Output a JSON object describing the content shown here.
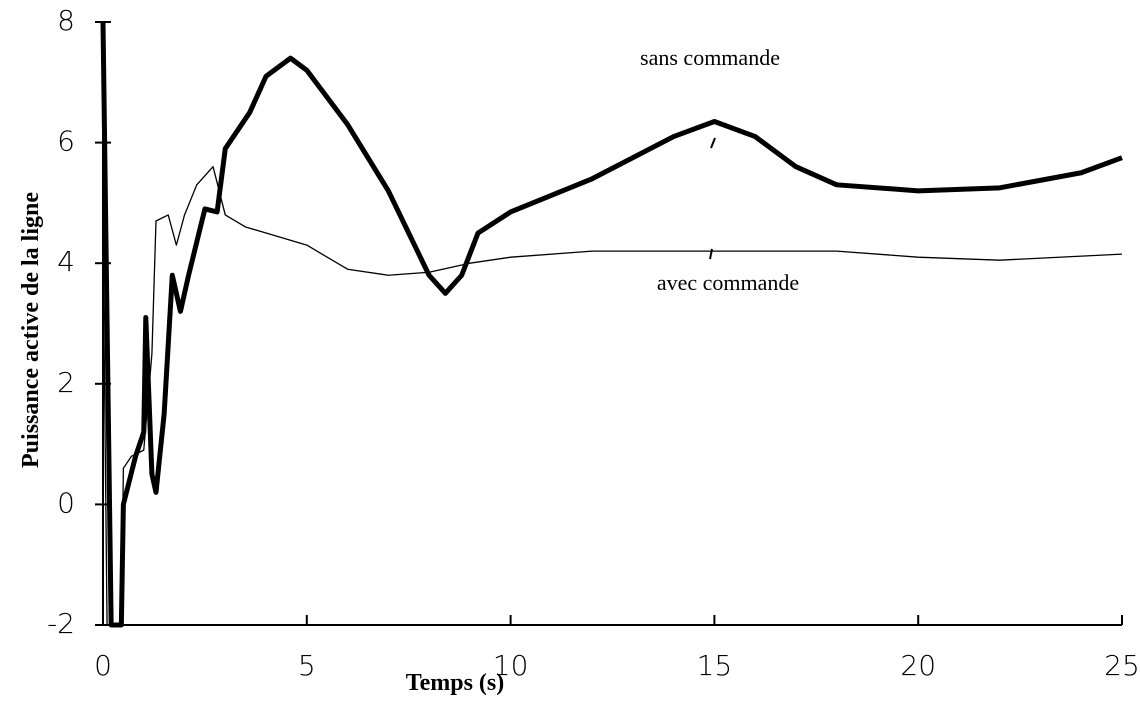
{
  "chart_data": {
    "type": "line",
    "xlabel": "Temps (s)",
    "ylabel": "Puissance active de la ligne",
    "xlim": [
      0,
      25
    ],
    "xticks": [
      0,
      5,
      10,
      15,
      20,
      25
    ],
    "ylim": [
      -2,
      8
    ],
    "yticks": [
      -2,
      0,
      2,
      4,
      6,
      8
    ],
    "annotations": [
      "sans commande",
      "avec commande"
    ],
    "series": [
      {
        "name": "sans commande",
        "color": "#000000",
        "x": [
          0,
          0.2,
          0.45,
          0.5,
          0.8,
          1.0,
          1.05,
          1.2,
          1.3,
          1.5,
          1.7,
          1.9,
          2.1,
          2.5,
          2.8,
          3.0,
          3.3,
          3.6,
          4.0,
          4.6,
          5,
          6,
          7,
          8,
          8.4,
          8.8,
          9.2,
          10,
          12,
          14,
          15,
          16,
          17,
          18,
          20,
          22,
          24,
          25
        ],
        "values": [
          8,
          -2,
          -2,
          0,
          0.8,
          1.2,
          3.1,
          0.5,
          0.2,
          1.5,
          3.8,
          3.2,
          3.8,
          4.9,
          4.85,
          5.9,
          6.2,
          6.5,
          7.1,
          7.4,
          7.2,
          6.3,
          5.2,
          3.8,
          3.5,
          3.8,
          4.5,
          4.85,
          5.4,
          6.1,
          6.35,
          6.1,
          5.6,
          5.3,
          5.2,
          5.25,
          5.5,
          5.75
        ]
      },
      {
        "name": "avec commande",
        "color": "#000000",
        "x": [
          0,
          0.1,
          0.45,
          0.5,
          0.7,
          1.0,
          1.2,
          1.3,
          1.6,
          1.8,
          2.0,
          2.3,
          2.7,
          3.0,
          3.5,
          4,
          5,
          6,
          7,
          8,
          9,
          10,
          12,
          15,
          18,
          20,
          22,
          25
        ],
        "values": [
          4.5,
          -2,
          -2,
          0.6,
          0.8,
          0.9,
          2.5,
          4.7,
          4.8,
          4.3,
          4.8,
          5.3,
          5.6,
          4.8,
          4.6,
          4.5,
          4.3,
          3.9,
          3.8,
          3.85,
          4.0,
          4.1,
          4.2,
          4.2,
          4.2,
          4.1,
          4.05,
          4.15
        ]
      }
    ]
  }
}
